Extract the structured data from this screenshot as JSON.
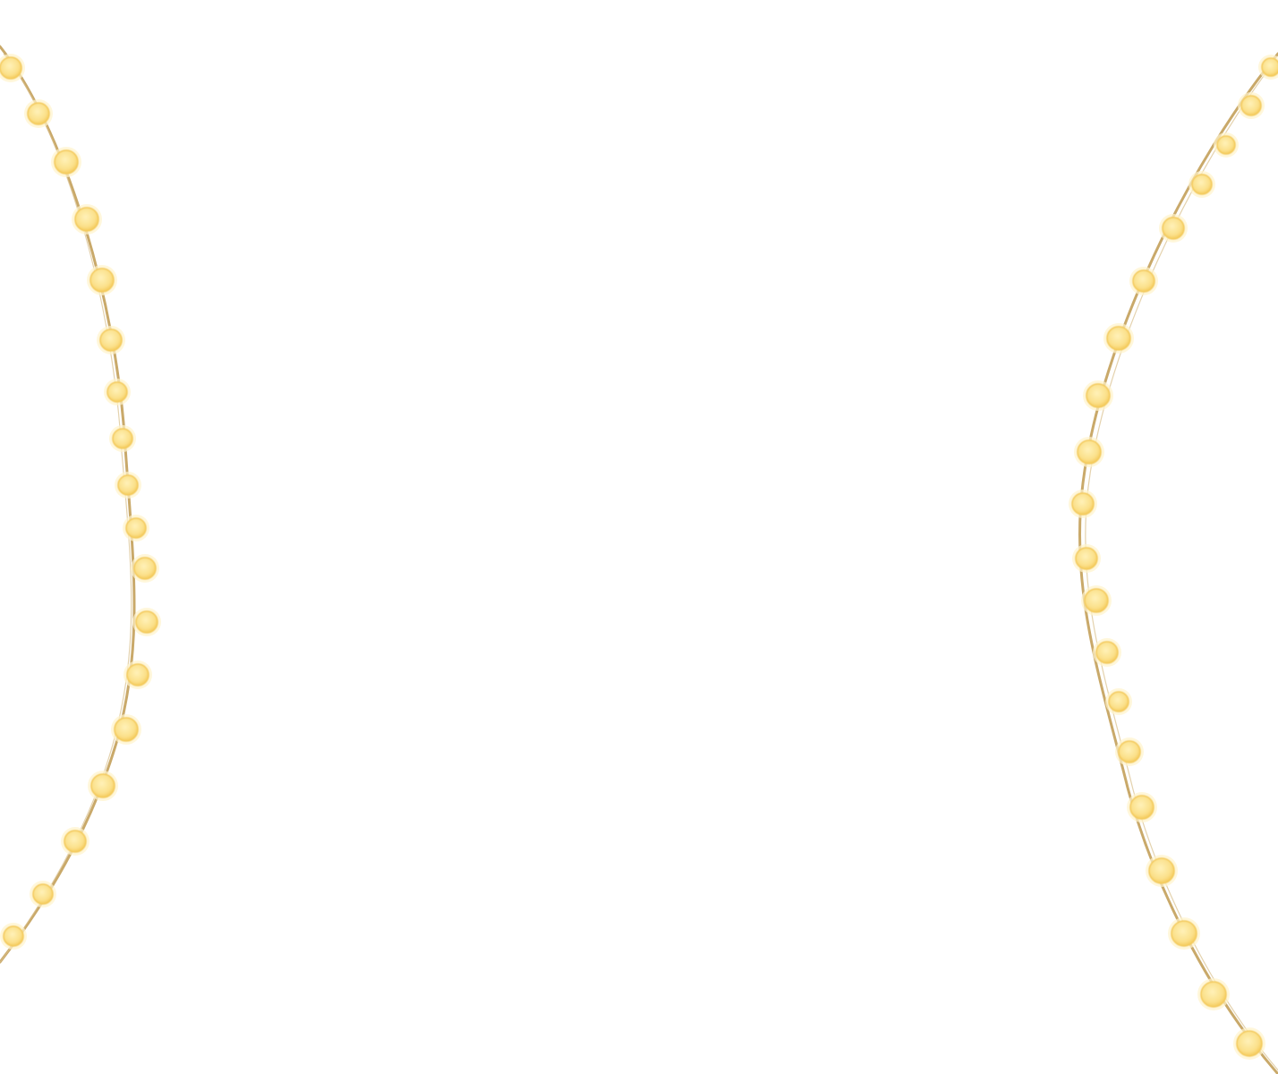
{
  "colors": {
    "background": "#ffffff",
    "wire": "#c9a96a",
    "bulb_fill": "#fbe49a",
    "bulb_edge": "#f3c95a",
    "bulb_glow": "#fff4cc"
  },
  "strings": [
    {
      "name": "left-light-string",
      "bulb_count": 20
    },
    {
      "name": "right-light-string",
      "bulb_count": 22
    }
  ]
}
